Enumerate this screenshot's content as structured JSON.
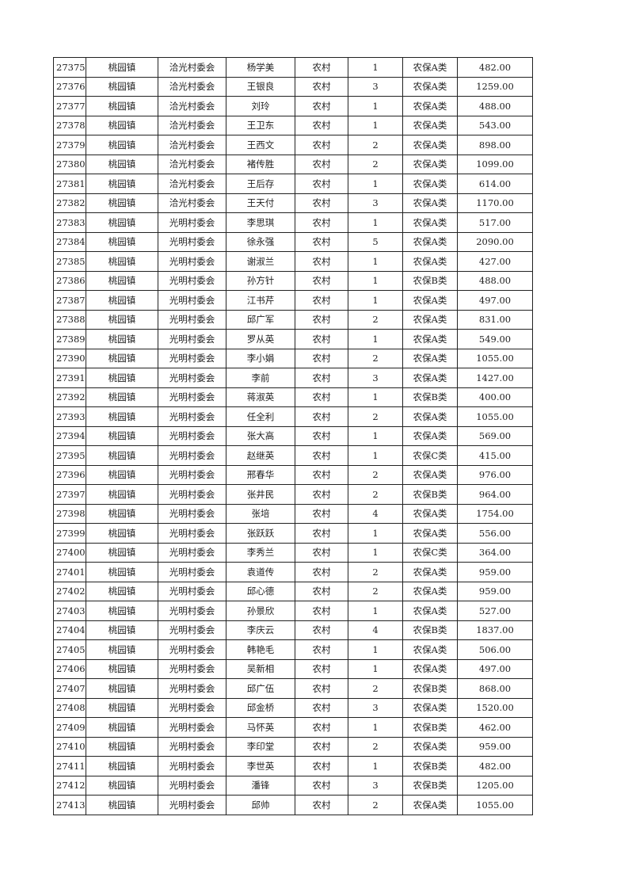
{
  "rows": [
    [
      "27375",
      "桃园镇",
      "洽光村委会",
      "杨学美",
      "农村",
      "1",
      "农保A类",
      "482.00"
    ],
    [
      "27376",
      "桃园镇",
      "洽光村委会",
      "王银良",
      "农村",
      "3",
      "农保A类",
      "1259.00"
    ],
    [
      "27377",
      "桃园镇",
      "洽光村委会",
      "刘玲",
      "农村",
      "1",
      "农保A类",
      "488.00"
    ],
    [
      "27378",
      "桃园镇",
      "洽光村委会",
      "王卫东",
      "农村",
      "1",
      "农保A类",
      "543.00"
    ],
    [
      "27379",
      "桃园镇",
      "洽光村委会",
      "王西文",
      "农村",
      "2",
      "农保A类",
      "898.00"
    ],
    [
      "27380",
      "桃园镇",
      "洽光村委会",
      "褚传胜",
      "农村",
      "2",
      "农保A类",
      "1099.00"
    ],
    [
      "27381",
      "桃园镇",
      "洽光村委会",
      "王后存",
      "农村",
      "1",
      "农保A类",
      "614.00"
    ],
    [
      "27382",
      "桃园镇",
      "洽光村委会",
      "王天付",
      "农村",
      "3",
      "农保A类",
      "1170.00"
    ],
    [
      "27383",
      "桃园镇",
      "光明村委会",
      "李思琪",
      "农村",
      "1",
      "农保A类",
      "517.00"
    ],
    [
      "27384",
      "桃园镇",
      "光明村委会",
      "徐永强",
      "农村",
      "5",
      "农保A类",
      "2090.00"
    ],
    [
      "27385",
      "桃园镇",
      "光明村委会",
      "谢淑兰",
      "农村",
      "1",
      "农保A类",
      "427.00"
    ],
    [
      "27386",
      "桃园镇",
      "光明村委会",
      "孙方针",
      "农村",
      "1",
      "农保B类",
      "488.00"
    ],
    [
      "27387",
      "桃园镇",
      "光明村委会",
      "江书芹",
      "农村",
      "1",
      "农保A类",
      "497.00"
    ],
    [
      "27388",
      "桃园镇",
      "光明村委会",
      "邱广军",
      "农村",
      "2",
      "农保A类",
      "831.00"
    ],
    [
      "27389",
      "桃园镇",
      "光明村委会",
      "罗从英",
      "农村",
      "1",
      "农保A类",
      "549.00"
    ],
    [
      "27390",
      "桃园镇",
      "光明村委会",
      "李小娟",
      "农村",
      "2",
      "农保A类",
      "1055.00"
    ],
    [
      "27391",
      "桃园镇",
      "光明村委会",
      "李前",
      "农村",
      "3",
      "农保A类",
      "1427.00"
    ],
    [
      "27392",
      "桃园镇",
      "光明村委会",
      "蒋淑英",
      "农村",
      "1",
      "农保B类",
      "400.00"
    ],
    [
      "27393",
      "桃园镇",
      "光明村委会",
      "任全利",
      "农村",
      "2",
      "农保A类",
      "1055.00"
    ],
    [
      "27394",
      "桃园镇",
      "光明村委会",
      "张大高",
      "农村",
      "1",
      "农保A类",
      "569.00"
    ],
    [
      "27395",
      "桃园镇",
      "光明村委会",
      "赵继英",
      "农村",
      "1",
      "农保C类",
      "415.00"
    ],
    [
      "27396",
      "桃园镇",
      "光明村委会",
      "邢春华",
      "农村",
      "2",
      "农保A类",
      "976.00"
    ],
    [
      "27397",
      "桃园镇",
      "光明村委会",
      "张井民",
      "农村",
      "2",
      "农保B类",
      "964.00"
    ],
    [
      "27398",
      "桃园镇",
      "光明村委会",
      "张培",
      "农村",
      "4",
      "农保A类",
      "1754.00"
    ],
    [
      "27399",
      "桃园镇",
      "光明村委会",
      "张跃跃",
      "农村",
      "1",
      "农保A类",
      "556.00"
    ],
    [
      "27400",
      "桃园镇",
      "光明村委会",
      "李秀兰",
      "农村",
      "1",
      "农保C类",
      "364.00"
    ],
    [
      "27401",
      "桃园镇",
      "光明村委会",
      "袁道传",
      "农村",
      "2",
      "农保A类",
      "959.00"
    ],
    [
      "27402",
      "桃园镇",
      "光明村委会",
      "邱心德",
      "农村",
      "2",
      "农保A类",
      "959.00"
    ],
    [
      "27403",
      "桃园镇",
      "光明村委会",
      "孙景欣",
      "农村",
      "1",
      "农保A类",
      "527.00"
    ],
    [
      "27404",
      "桃园镇",
      "光明村委会",
      "李庆云",
      "农村",
      "4",
      "农保B类",
      "1837.00"
    ],
    [
      "27405",
      "桃园镇",
      "光明村委会",
      "韩艳毛",
      "农村",
      "1",
      "农保A类",
      "506.00"
    ],
    [
      "27406",
      "桃园镇",
      "光明村委会",
      "吴新相",
      "农村",
      "1",
      "农保A类",
      "497.00"
    ],
    [
      "27407",
      "桃园镇",
      "光明村委会",
      "邱广伍",
      "农村",
      "2",
      "农保B类",
      "868.00"
    ],
    [
      "27408",
      "桃园镇",
      "光明村委会",
      "邱金桥",
      "农村",
      "3",
      "农保A类",
      "1520.00"
    ],
    [
      "27409",
      "桃园镇",
      "光明村委会",
      "马怀英",
      "农村",
      "1",
      "农保B类",
      "462.00"
    ],
    [
      "27410",
      "桃园镇",
      "光明村委会",
      "李印堂",
      "农村",
      "2",
      "农保A类",
      "959.00"
    ],
    [
      "27411",
      "桃园镇",
      "光明村委会",
      "李世英",
      "农村",
      "1",
      "农保B类",
      "482.00"
    ],
    [
      "27412",
      "桃园镇",
      "光明村委会",
      "潘锋",
      "农村",
      "3",
      "农保B类",
      "1205.00"
    ],
    [
      "27413",
      "桃园镇",
      "光明村委会",
      "邱帅",
      "农村",
      "2",
      "农保A类",
      "1055.00"
    ]
  ]
}
